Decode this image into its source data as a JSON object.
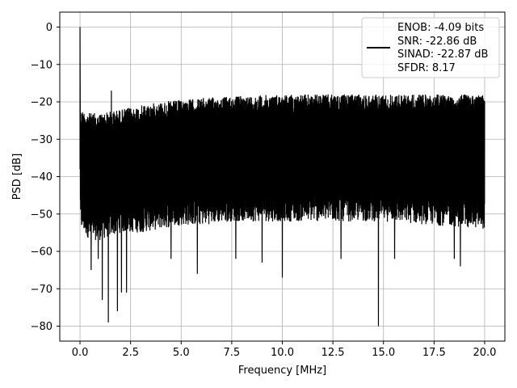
{
  "chart_data": {
    "type": "line",
    "xlabel": "Frequency [MHz]",
    "ylabel": "PSD [dB]",
    "xlim": [
      -1,
      21
    ],
    "ylim": [
      -84,
      4
    ],
    "xticks": [
      "0.0",
      "2.5",
      "5.0",
      "7.5",
      "10.0",
      "12.5",
      "15.0",
      "17.5",
      "20.0"
    ],
    "yticks": [
      "0",
      "−10",
      "−20",
      "−30",
      "−40",
      "−50",
      "−60",
      "−70",
      "−80"
    ],
    "grid": true,
    "legend_position": "top-right",
    "legend": [
      "ENOB: -4.09 bits",
      "SNR: -22.86 dB",
      "SINAD: -22.87 dB",
      "SFDR: 8.17"
    ],
    "series": [
      {
        "color": "#000000",
        "noise_band": {
          "x": [
            0.0,
            0.5,
            1.0,
            2.0,
            3.0,
            4.0,
            5.0,
            6.0,
            7.5,
            10.0,
            12.5,
            15.0,
            17.5,
            20.0
          ],
          "upper": [
            -22,
            -23,
            -23,
            -22,
            -21,
            -20,
            -19.5,
            -19,
            -18.5,
            -18,
            -18,
            -18,
            -18,
            -18
          ],
          "typical_lower": [
            -52,
            -55,
            -55,
            -53,
            -53,
            -52,
            -51,
            -51,
            -50,
            -50,
            -50,
            -50,
            -51,
            -52
          ]
        },
        "peaks": [
          {
            "x": 0.0,
            "y": 0
          },
          {
            "x": 1.55,
            "y": -17
          }
        ],
        "dips": [
          {
            "x": 0.55,
            "y": -65
          },
          {
            "x": 0.9,
            "y": -62
          },
          {
            "x": 1.1,
            "y": -73
          },
          {
            "x": 1.4,
            "y": -79
          },
          {
            "x": 1.85,
            "y": -76
          },
          {
            "x": 2.05,
            "y": -71
          },
          {
            "x": 2.3,
            "y": -71
          },
          {
            "x": 4.5,
            "y": -62
          },
          {
            "x": 5.8,
            "y": -66
          },
          {
            "x": 7.7,
            "y": -62
          },
          {
            "x": 9.0,
            "y": -63
          },
          {
            "x": 10.0,
            "y": -67
          },
          {
            "x": 12.9,
            "y": -62
          },
          {
            "x": 14.75,
            "y": -80
          },
          {
            "x": 15.55,
            "y": -62
          },
          {
            "x": 18.5,
            "y": -62
          },
          {
            "x": 18.8,
            "y": -64
          }
        ]
      }
    ]
  }
}
